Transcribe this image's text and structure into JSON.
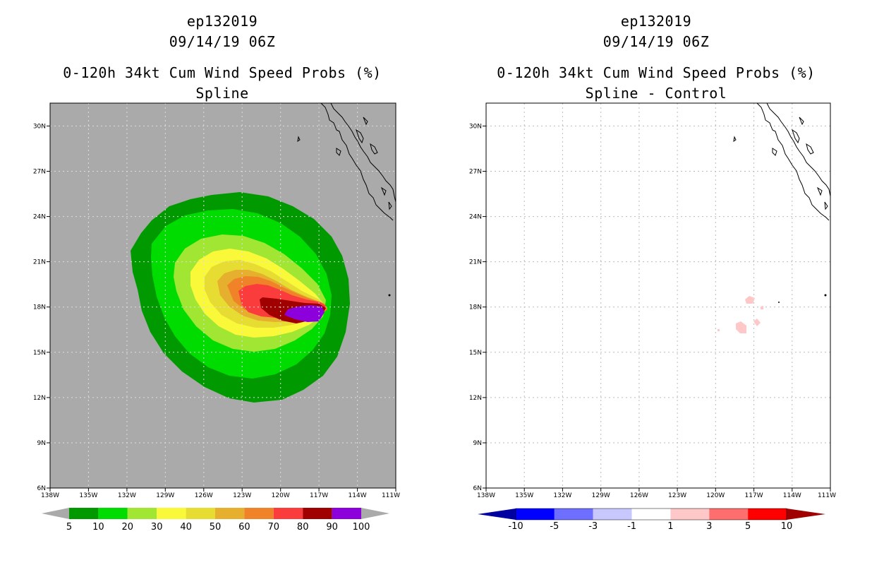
{
  "left_panel": {
    "storm_id": "ep132019",
    "datetime": "09/14/19 06Z",
    "product": "0-120h 34kt Cum Wind Speed Probs (%)",
    "subtitle": "Spline",
    "colorbar_labels": [
      "5",
      "10",
      "20",
      "30",
      "40",
      "50",
      "60",
      "70",
      "80",
      "90",
      "100"
    ],
    "colorbar_colors": [
      "#009a00",
      "#00dc00",
      "#a0e632",
      "#f9f93a",
      "#e6dc32",
      "#e6af2d",
      "#f08228",
      "#fa3c3c",
      "#a00000",
      "#8c00dc"
    ],
    "background_color": "#aaaaaa"
  },
  "right_panel": {
    "storm_id": "ep132019",
    "datetime": "09/14/19 06Z",
    "product": "0-120h 34kt Cum Wind Speed Probs (%)",
    "subtitle": "Spline - Control",
    "colorbar_labels": [
      "-10",
      "-5",
      "-3",
      "-1",
      "1",
      "3",
      "5",
      "10"
    ],
    "colorbar_colors": [
      "#0000a0",
      "#0000ff",
      "#6e6eff",
      "#c8c8ff",
      "#ffffff",
      "#ffc8c8",
      "#ff6e6e",
      "#ff0000",
      "#a00000"
    ]
  },
  "axes": {
    "lat_labels": [
      "30N",
      "27N",
      "24N",
      "21N",
      "18N",
      "15N",
      "12N",
      "9N",
      "6N"
    ],
    "lon_labels": [
      "138W",
      "135W",
      "132W",
      "129W",
      "126W",
      "123W",
      "120W",
      "117W",
      "114W",
      "111W"
    ]
  }
}
